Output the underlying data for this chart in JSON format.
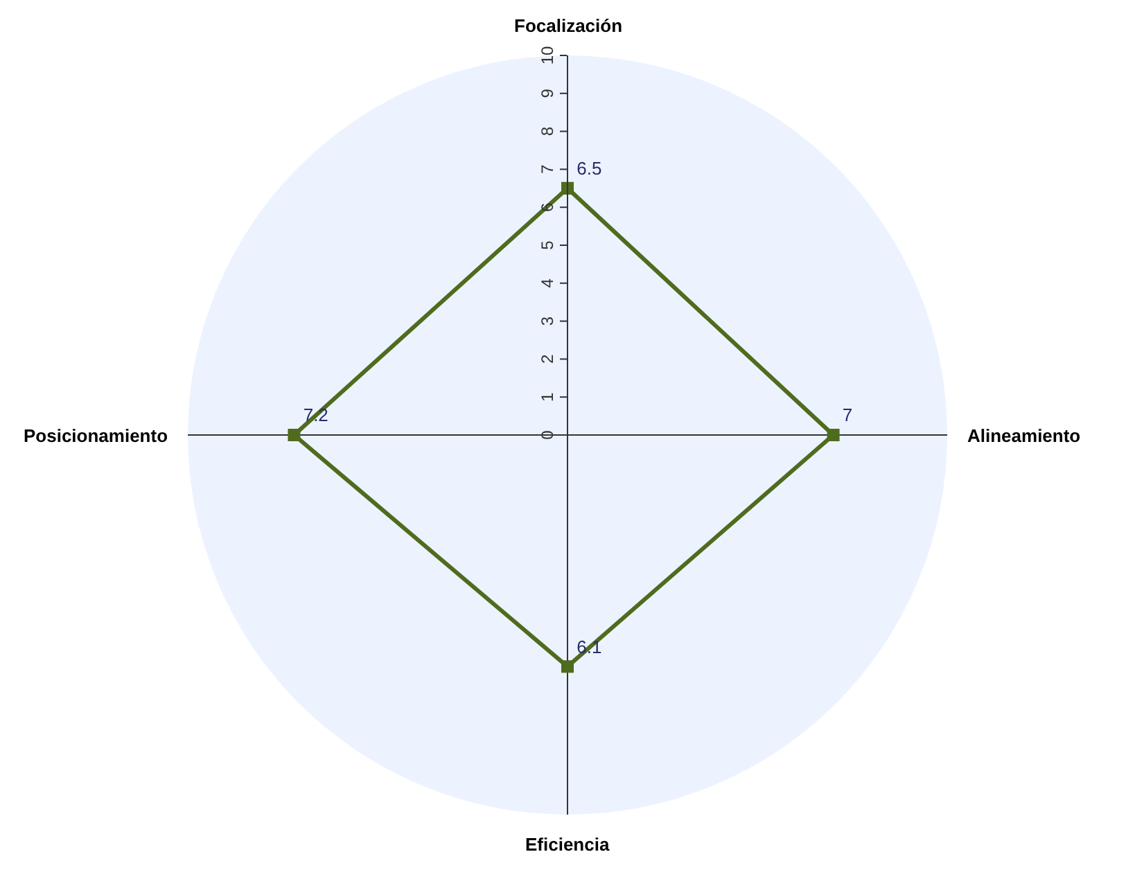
{
  "chart_data": {
    "type": "radar",
    "categories": [
      "Focalización",
      "Alineamiento",
      "Eficiencia",
      "Posicionamiento"
    ],
    "series": [
      {
        "color": "#4f6b1e",
        "values": [
          6.5,
          7,
          6.1,
          7.2
        ]
      }
    ],
    "ylim": [
      0,
      10
    ],
    "yticks": [
      0,
      1,
      2,
      3,
      4,
      5,
      6,
      7,
      8,
      9,
      10
    ],
    "marker": "square",
    "line_style": "solid",
    "data_labels": true,
    "legend": false
  }
}
